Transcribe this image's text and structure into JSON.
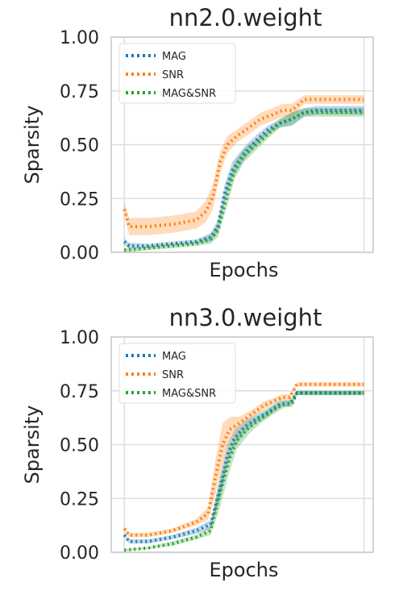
{
  "chart_data": [
    {
      "type": "line",
      "title": "nn2.0.weight",
      "xlabel": "Epochs",
      "ylabel": "Sparsity",
      "ylim": [
        0,
        1
      ],
      "yticks": [
        "0.00",
        "0.25",
        "0.50",
        "0.75",
        "1.00"
      ],
      "xtick_labels": [],
      "grid": true,
      "legend": "top-left",
      "x_range": [
        0,
        1
      ],
      "series": [
        {
          "name": "MAG",
          "color": "#1f77b4",
          "style": "dotted",
          "x": [
            0,
            0.02,
            0.1,
            0.2,
            0.3,
            0.36,
            0.39,
            0.42,
            0.45,
            0.5,
            0.55,
            0.6,
            0.65,
            0.7,
            0.75,
            0.8,
            0.9,
            1.0
          ],
          "y": [
            0.05,
            0.03,
            0.03,
            0.04,
            0.05,
            0.07,
            0.12,
            0.28,
            0.38,
            0.46,
            0.52,
            0.57,
            0.6,
            0.62,
            0.65,
            0.66,
            0.66,
            0.66
          ],
          "band_width": [
            0.015,
            0.015,
            0.01,
            0.01,
            0.01,
            0.02,
            0.03,
            0.04,
            0.04,
            0.03,
            0.025,
            0.02,
            0.02,
            0.03,
            0.02,
            0.02,
            0.02,
            0.02
          ]
        },
        {
          "name": "SNR",
          "color": "#ff7f0e",
          "style": "dotted",
          "x": [
            0,
            0.02,
            0.1,
            0.2,
            0.3,
            0.34,
            0.37,
            0.4,
            0.43,
            0.47,
            0.52,
            0.57,
            0.62,
            0.66,
            0.7,
            0.75,
            0.8,
            0.9,
            1.0
          ],
          "y": [
            0.2,
            0.12,
            0.12,
            0.13,
            0.15,
            0.19,
            0.26,
            0.42,
            0.5,
            0.54,
            0.58,
            0.62,
            0.64,
            0.66,
            0.66,
            0.71,
            0.71,
            0.71,
            0.71
          ],
          "band_width": [
            0.03,
            0.04,
            0.04,
            0.04,
            0.04,
            0.05,
            0.06,
            0.05,
            0.04,
            0.03,
            0.03,
            0.03,
            0.03,
            0.03,
            0.03,
            0.02,
            0.02,
            0.02,
            0.02
          ]
        },
        {
          "name": "MAG&SNR",
          "color": "#2ca02c",
          "style": "dotted",
          "x": [
            0,
            0.1,
            0.2,
            0.3,
            0.36,
            0.39,
            0.43,
            0.46,
            0.5,
            0.55,
            0.6,
            0.65,
            0.7,
            0.75,
            0.8,
            0.9,
            1.0
          ],
          "y": [
            0.01,
            0.02,
            0.03,
            0.04,
            0.06,
            0.1,
            0.27,
            0.38,
            0.45,
            0.5,
            0.55,
            0.6,
            0.62,
            0.65,
            0.65,
            0.65,
            0.65
          ],
          "band_width": [
            0.01,
            0.01,
            0.01,
            0.01,
            0.02,
            0.03,
            0.05,
            0.04,
            0.03,
            0.025,
            0.02,
            0.02,
            0.03,
            0.02,
            0.02,
            0.02,
            0.02
          ]
        }
      ]
    },
    {
      "type": "line",
      "title": "nn3.0.weight",
      "xlabel": "Epochs",
      "ylabel": "Sparsity",
      "ylim": [
        0,
        1
      ],
      "yticks": [
        "0.00",
        "0.25",
        "0.50",
        "0.75",
        "1.00"
      ],
      "xtick_labels": [],
      "grid": true,
      "legend": "top-left",
      "x_range": [
        0,
        1
      ],
      "series": [
        {
          "name": "MAG",
          "color": "#1f77b4",
          "style": "dotted",
          "x": [
            0,
            0.02,
            0.1,
            0.2,
            0.3,
            0.36,
            0.4,
            0.43,
            0.46,
            0.5,
            0.55,
            0.6,
            0.65,
            0.69,
            0.72,
            0.8,
            0.9,
            1.0
          ],
          "y": [
            0.08,
            0.05,
            0.05,
            0.07,
            0.1,
            0.13,
            0.3,
            0.45,
            0.53,
            0.58,
            0.62,
            0.65,
            0.69,
            0.69,
            0.74,
            0.74,
            0.74,
            0.74
          ],
          "band_width": [
            0.01,
            0.01,
            0.01,
            0.01,
            0.015,
            0.02,
            0.05,
            0.05,
            0.04,
            0.03,
            0.02,
            0.02,
            0.015,
            0.015,
            0.01,
            0.01,
            0.01,
            0.01
          ]
        },
        {
          "name": "SNR",
          "color": "#ff7f0e",
          "style": "dotted",
          "x": [
            0,
            0.02,
            0.1,
            0.2,
            0.3,
            0.35,
            0.38,
            0.41,
            0.44,
            0.48,
            0.53,
            0.58,
            0.62,
            0.66,
            0.69,
            0.72,
            0.8,
            0.9,
            1.0
          ],
          "y": [
            0.11,
            0.08,
            0.08,
            0.1,
            0.14,
            0.18,
            0.35,
            0.5,
            0.57,
            0.6,
            0.64,
            0.68,
            0.7,
            0.72,
            0.72,
            0.78,
            0.78,
            0.78,
            0.78
          ],
          "band_width": [
            0.01,
            0.01,
            0.01,
            0.01,
            0.015,
            0.03,
            0.08,
            0.1,
            0.06,
            0.03,
            0.02,
            0.02,
            0.015,
            0.015,
            0.015,
            0.01,
            0.01,
            0.01,
            0.01
          ]
        },
        {
          "name": "MAG&SNR",
          "color": "#2ca02c",
          "style": "dotted",
          "x": [
            0,
            0.1,
            0.2,
            0.3,
            0.36,
            0.4,
            0.44,
            0.47,
            0.52,
            0.57,
            0.62,
            0.67,
            0.7,
            0.72,
            0.8,
            0.9,
            1.0
          ],
          "y": [
            0.01,
            0.02,
            0.04,
            0.07,
            0.1,
            0.28,
            0.44,
            0.52,
            0.58,
            0.62,
            0.66,
            0.69,
            0.69,
            0.74,
            0.74,
            0.74,
            0.74
          ],
          "band_width": [
            0.005,
            0.005,
            0.01,
            0.01,
            0.02,
            0.07,
            0.06,
            0.04,
            0.03,
            0.02,
            0.02,
            0.015,
            0.015,
            0.01,
            0.01,
            0.01,
            0.01
          ]
        }
      ]
    }
  ]
}
